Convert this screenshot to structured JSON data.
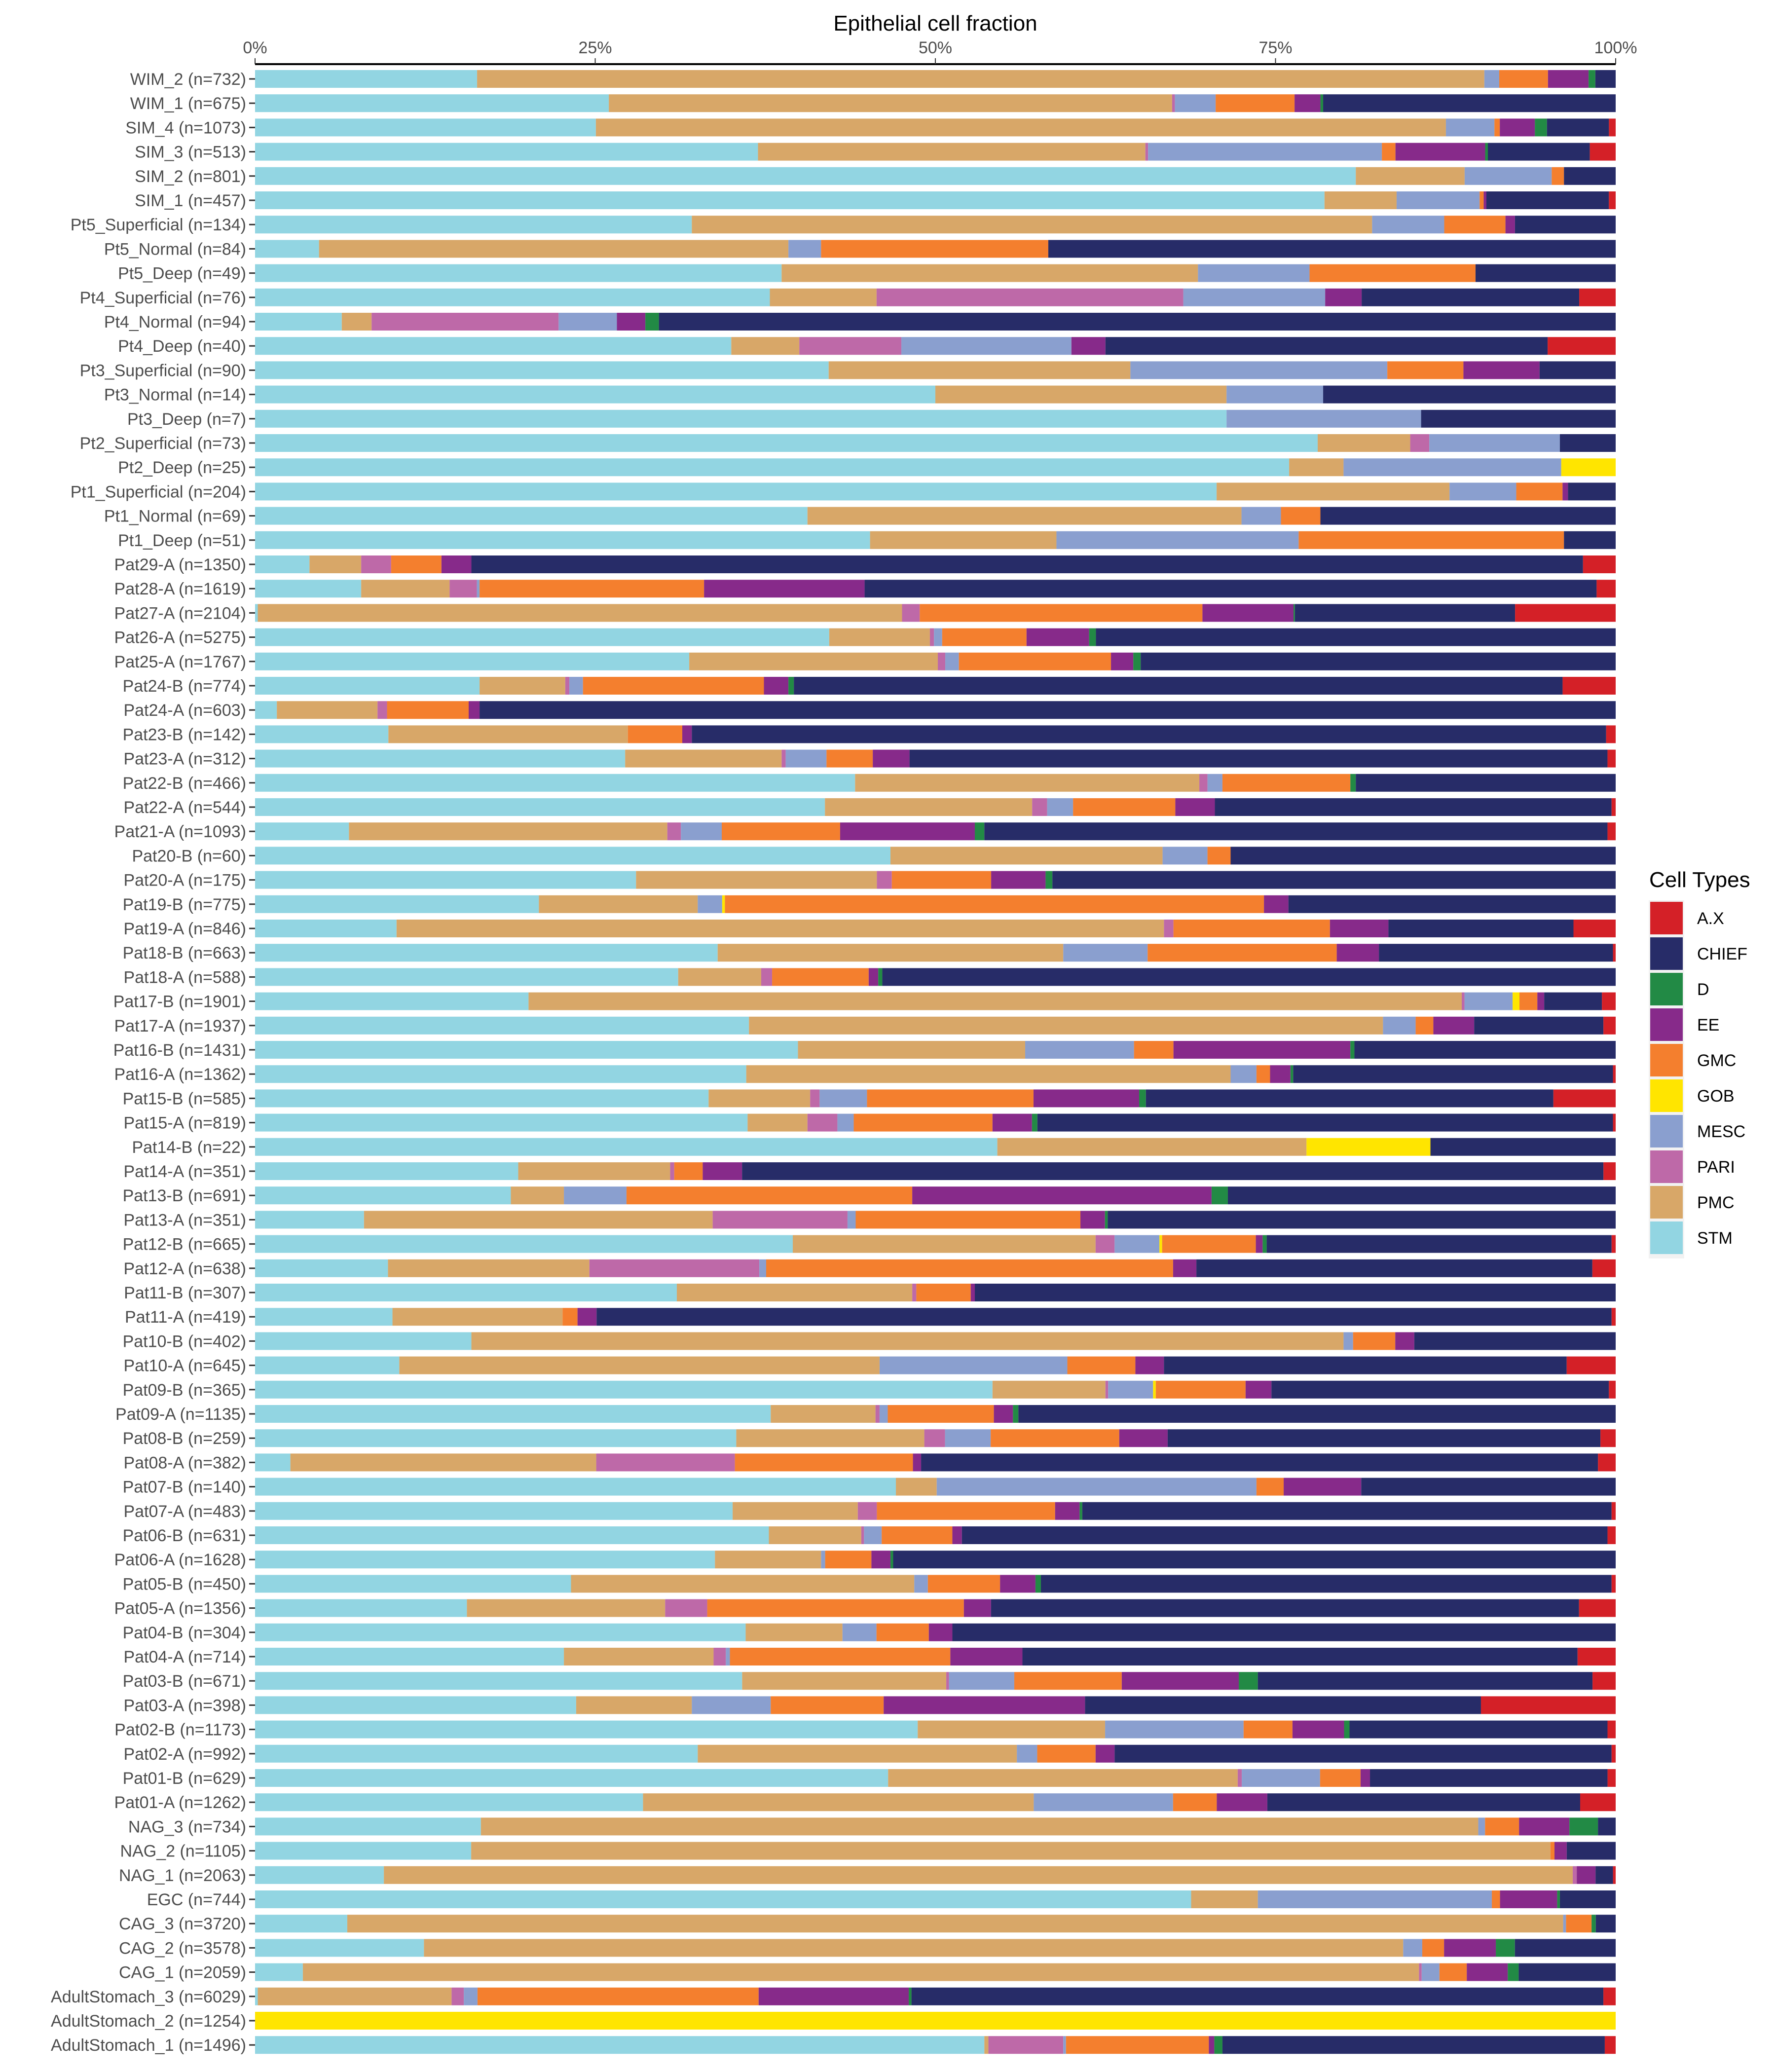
{
  "chart_data": {
    "type": "bar",
    "orientation": "horizontal",
    "stacked": true,
    "title": "Epithelial cell fraction",
    "xlabel": "Epithelial cell fraction",
    "ylabel": "",
    "xlim": [
      0,
      100
    ],
    "x_ticks": [
      "0%",
      "25%",
      "50%",
      "75%",
      "100%"
    ],
    "x_tick_values": [
      0,
      25,
      50,
      75,
      100
    ],
    "grid": false,
    "legend": {
      "title": "Cell Types",
      "placement": "right",
      "items": [
        {
          "name": "A.X",
          "color": "#d42027"
        },
        {
          "name": "CHIEF",
          "color": "#272c68"
        },
        {
          "name": "D",
          "color": "#228a45"
        },
        {
          "name": "EE",
          "color": "#872a8a"
        },
        {
          "name": "GMC",
          "color": "#f47f2e"
        },
        {
          "name": "GOB",
          "color": "#ffe500"
        },
        {
          "name": "MESC",
          "color": "#8a9fcf"
        },
        {
          "name": "PARI",
          "color": "#be69a8"
        },
        {
          "name": "PMC",
          "color": "#d8a768"
        },
        {
          "name": "STM",
          "color": "#92d5e2"
        }
      ]
    },
    "stack_order": [
      "STM",
      "PMC",
      "PARI",
      "MESC",
      "GOB",
      "GMC",
      "EE",
      "D",
      "CHIEF",
      "A.X"
    ],
    "categories": [
      "WIM_2 (n=732)",
      "WIM_1 (n=675)",
      "SIM_4 (n=1073)",
      "SIM_3 (n=513)",
      "SIM_2 (n=801)",
      "SIM_1 (n=457)",
      "Pt5_Superficial (n=134)",
      "Pt5_Normal (n=84)",
      "Pt5_Deep (n=49)",
      "Pt4_Superficial (n=76)",
      "Pt4_Normal (n=94)",
      "Pt4_Deep (n=40)",
      "Pt3_Superficial (n=90)",
      "Pt3_Normal (n=14)",
      "Pt3_Deep (n=7)",
      "Pt2_Superficial (n=73)",
      "Pt2_Deep (n=25)",
      "Pt1_Superficial (n=204)",
      "Pt1_Normal (n=69)",
      "Pt1_Deep (n=51)",
      "Pat29-A (n=1350)",
      "Pat28-A (n=1619)",
      "Pat27-A (n=2104)",
      "Pat26-A (n=5275)",
      "Pat25-A (n=1767)",
      "Pat24-B (n=774)",
      "Pat24-A (n=603)",
      "Pat23-B (n=142)",
      "Pat23-A (n=312)",
      "Pat22-B (n=466)",
      "Pat22-A (n=544)",
      "Pat21-A (n=1093)",
      "Pat20-B (n=60)",
      "Pat20-A (n=175)",
      "Pat19-B (n=775)",
      "Pat19-A (n=846)",
      "Pat18-B (n=663)",
      "Pat18-A (n=588)",
      "Pat17-B (n=1901)",
      "Pat17-A (n=1937)",
      "Pat16-B (n=1431)",
      "Pat16-A (n=1362)",
      "Pat15-B (n=585)",
      "Pat15-A (n=819)",
      "Pat14-B (n=22)",
      "Pat14-A (n=351)",
      "Pat13-B (n=691)",
      "Pat13-A (n=351)",
      "Pat12-B (n=665)",
      "Pat12-A (n=638)",
      "Pat11-B (n=307)",
      "Pat11-A (n=419)",
      "Pat10-B (n=402)",
      "Pat10-A (n=645)",
      "Pat09-B (n=365)",
      "Pat09-A (n=1135)",
      "Pat08-B (n=259)",
      "Pat08-A (n=382)",
      "Pat07-B (n=140)",
      "Pat07-A (n=483)",
      "Pat06-B (n=631)",
      "Pat06-A (n=1628)",
      "Pat05-B (n=450)",
      "Pat05-A (n=1356)",
      "Pat04-B (n=304)",
      "Pat04-A (n=714)",
      "Pat03-B (n=671)",
      "Pat03-A (n=398)",
      "Pat02-B (n=1173)",
      "Pat02-A (n=992)",
      "Pat01-B (n=629)",
      "Pat01-A (n=1262)",
      "NAG_3 (n=734)",
      "NAG_2 (n=1105)",
      "NAG_1 (n=2063)",
      "EGC (n=744)",
      "CAG_3 (n=3720)",
      "CAG_2 (n=3578)",
      "CAG_1 (n=2059)",
      "AdultStomach_3 (n=6029)",
      "AdultStomach_2 (n=1254)",
      "AdultStomach_1 (n=1496)"
    ],
    "series": [
      {
        "name": "STM",
        "values": [
          16.4,
          26.0,
          25.3,
          37.0,
          80.9,
          78.6,
          32.1,
          4.7,
          38.7,
          38.1,
          6.4,
          35.0,
          42.2,
          50.0,
          71.4,
          78.1,
          76.0,
          70.6,
          40.6,
          45.2,
          4.0,
          7.8,
          0.2,
          42.2,
          35.1,
          16.5,
          1.6,
          9.8,
          27.2,
          44.1,
          41.8,
          6.9,
          46.7,
          28.0,
          20.9,
          10.4,
          34.0,
          31.1,
          19.9,
          36.3,
          39.9,
          36.1,
          33.5,
          36.2,
          54.5,
          19.4,
          18.8,
          8.0,
          39.6,
          9.7,
          31.0,
          10.1,
          15.9,
          10.6,
          54.2,
          37.9,
          34.8,
          2.6,
          47.1,
          35.1,
          37.8,
          33.8,
          23.2,
          15.6,
          37.5,
          22.7,
          35.8,
          23.6,
          48.8,
          32.6,
          46.9,
          28.4,
          16.6,
          15.9,
          9.6,
          68.8,
          6.5,
          12.4,
          3.5,
          0.2,
          0,
          53.6
        ]
      },
      {
        "name": "PMC",
        "values": [
          74.4,
          41.4,
          63.1,
          28.5,
          8.0,
          5.3,
          50.0,
          34.5,
          30.6,
          7.9,
          2.2,
          5.0,
          22.2,
          21.4,
          0,
          6.8,
          4.0,
          17.1,
          31.9,
          13.7,
          3.8,
          6.5,
          47.4,
          7.4,
          20.1,
          6.3,
          7.4,
          17.6,
          11.5,
          25.3,
          15.2,
          23.4,
          20.0,
          17.7,
          11.7,
          56.4,
          25.4,
          6.1,
          67.9,
          46.6,
          16.7,
          35.6,
          7.5,
          4.4,
          22.7,
          11.2,
          3.9,
          25.6,
          22.3,
          14.7,
          17.3,
          12.5,
          64.1,
          35.3,
          8.3,
          7.7,
          13.6,
          22.5,
          3.0,
          9.2,
          6.8,
          7.8,
          25.2,
          14.6,
          7.4,
          11.0,
          15.0,
          8.5,
          13.8,
          23.5,
          25.9,
          28.6,
          73.3,
          79.4,
          88.6,
          4.9,
          85.7,
          71.9,
          81.7,
          14.2,
          0,
          0.3
        ]
      },
      {
        "name": "PARI",
        "values": [
          0,
          0.2,
          0,
          0.2,
          0,
          0,
          0,
          0,
          0,
          22.7,
          13.8,
          7.5,
          0,
          0,
          0,
          1.4,
          0,
          0,
          0,
          0,
          2.2,
          2.0,
          1.3,
          0.3,
          0.6,
          0.3,
          0.7,
          0,
          0.3,
          0.6,
          1.1,
          1.0,
          0,
          1.1,
          0,
          0.7,
          0,
          0.8,
          0.2,
          0,
          0,
          0,
          0.7,
          2.2,
          0,
          0.3,
          0,
          9.9,
          1.4,
          12.4,
          0.3,
          0,
          0,
          0,
          0.2,
          0.3,
          1.5,
          10.2,
          0,
          1.4,
          0.2,
          0,
          0,
          3.1,
          0,
          0.9,
          0.2,
          0,
          0,
          0,
          0.3,
          0,
          0,
          0,
          0.3,
          0,
          0,
          0,
          0.2,
          0.9,
          0,
          5.5
        ]
      },
      {
        "name": "MESC",
        "values": [
          1.1,
          3.0,
          3.6,
          17.2,
          6.4,
          6.1,
          5.3,
          2.4,
          8.2,
          10.5,
          4.3,
          12.5,
          18.9,
          7.1,
          14.3,
          9.6,
          16.0,
          4.9,
          2.9,
          17.8,
          0,
          0.2,
          0,
          0.6,
          1.1,
          1.0,
          0,
          0,
          3.0,
          1.1,
          1.9,
          3.0,
          3.3,
          0,
          1.8,
          0,
          6.2,
          0,
          3.5,
          2.4,
          8.0,
          1.9,
          3.5,
          1.2,
          0,
          0,
          4.6,
          0.6,
          3.3,
          0.5,
          0,
          0,
          0.7,
          13.8,
          3.3,
          0.6,
          3.3,
          0,
          23.5,
          0,
          1.3,
          0.3,
          1.0,
          0,
          2.6,
          0.3,
          4.8,
          5.8,
          10.2,
          1.5,
          5.8,
          10.2,
          0.5,
          0,
          0,
          17.2,
          0.2,
          1.4,
          1.3,
          1.0,
          0,
          0.2
        ]
      },
      {
        "name": "GOB",
        "values": [
          0,
          0,
          0,
          0,
          0,
          0,
          0,
          0,
          0,
          0,
          0,
          0,
          0,
          0,
          0,
          0,
          4.0,
          0,
          0,
          0,
          0,
          0,
          0,
          0,
          0,
          0,
          0,
          0,
          0,
          0,
          0,
          0,
          0,
          0,
          0.2,
          0,
          0,
          0,
          0.5,
          0,
          0,
          0,
          0,
          0,
          9.1,
          0,
          0,
          0,
          0.2,
          0,
          0,
          0,
          0,
          0,
          0.2,
          0,
          0,
          0,
          0,
          0,
          0,
          0,
          0,
          0,
          0,
          0,
          0,
          0,
          0,
          0,
          0,
          0,
          0,
          0,
          0,
          0,
          0,
          0,
          0,
          0,
          100,
          0
        ]
      },
      {
        "name": "GMC",
        "values": [
          3.6,
          5.8,
          0.4,
          1.0,
          0.9,
          0.3,
          4.5,
          16.7,
          12.2,
          0,
          0,
          0,
          5.6,
          0,
          0,
          0,
          0,
          3.4,
          2.9,
          19.5,
          3.7,
          16.5,
          20.8,
          6.2,
          12.3,
          13.3,
          6.0,
          4.0,
          3.4,
          9.4,
          7.5,
          8.7,
          1.7,
          7.3,
          39.7,
          11.5,
          13.9,
          7.1,
          1.3,
          1.3,
          2.9,
          1.0,
          12.3,
          10.2,
          0,
          2.1,
          21.0,
          16.5,
          6.9,
          29.7,
          4.0,
          1.1,
          3.1,
          5.0,
          6.6,
          7.8,
          9.3,
          13.1,
          2.0,
          13.1,
          5.2,
          3.4,
          5.3,
          18.9,
          4.0,
          16.2,
          7.9,
          8.3,
          3.6,
          4.3,
          3.0,
          3.2,
          2.5,
          0.3,
          0,
          0.6,
          1.8,
          1.6,
          2.0,
          20.6,
          0,
          10.5
        ]
      },
      {
        "name": "EE",
        "values": [
          3.0,
          1.9,
          2.6,
          6.6,
          0,
          0.2,
          0.7,
          0,
          0,
          2.7,
          2.1,
          2.5,
          5.6,
          0,
          0,
          0,
          0,
          0.4,
          0,
          0,
          2.2,
          11.8,
          6.7,
          4.6,
          1.8,
          1.8,
          0.8,
          0.7,
          2.7,
          0,
          2.9,
          9.9,
          0,
          4.0,
          1.8,
          4.3,
          3.1,
          0.7,
          0.5,
          3.0,
          13.0,
          1.5,
          7.8,
          2.9,
          0,
          2.9,
          22.0,
          1.8,
          0.5,
          1.7,
          0.3,
          1.4,
          1.4,
          2.1,
          1.9,
          1.4,
          3.5,
          0.6,
          5.7,
          1.8,
          0.7,
          1.4,
          2.6,
          2.0,
          1.8,
          5.3,
          8.6,
          14.8,
          3.8,
          1.4,
          0.7,
          3.7,
          3.7,
          0.9,
          1.4,
          4.2,
          0,
          3.8,
          3.0,
          11.0,
          0,
          0.4
        ]
      },
      {
        "name": "D",
        "values": [
          0.5,
          0.2,
          0.9,
          0.2,
          0,
          0,
          0,
          0,
          0,
          0,
          1.0,
          0,
          0,
          0,
          0,
          0,
          0,
          0,
          0,
          0,
          0,
          0,
          0.1,
          0.5,
          0.6,
          0.4,
          0,
          0,
          0,
          0.4,
          0,
          0.7,
          0,
          0.5,
          0,
          0,
          0,
          0.3,
          0,
          0,
          0.3,
          0.2,
          0.5,
          0.4,
          0,
          0,
          1.2,
          0.2,
          0.3,
          0,
          0,
          0,
          0,
          0,
          0,
          0.4,
          0,
          0,
          0,
          0.2,
          0,
          0.2,
          0.4,
          0,
          0,
          0,
          1.4,
          0,
          0.4,
          0,
          0,
          0,
          2.1,
          0,
          0,
          0.2,
          0.3,
          1.4,
          0.8,
          0.2,
          0,
          0.6
        ]
      },
      {
        "name": "CHIEF",
        "values": [
          1.5,
          21.5,
          4.6,
          7.5,
          3.8,
          9.0,
          7.4,
          41.7,
          10.3,
          16.1,
          70.6,
          32.5,
          5.6,
          21.5,
          14.3,
          4.1,
          0,
          3.5,
          21.7,
          3.8,
          81.7,
          53.8,
          16.2,
          38.2,
          38.4,
          56.5,
          83.5,
          67.2,
          51.3,
          19.1,
          29.1,
          45.8,
          28.3,
          41.4,
          24.1,
          13.6,
          17.2,
          53.9,
          4.2,
          9.5,
          19.2,
          23.5,
          30.1,
          42.3,
          13.6,
          63.5,
          28.5,
          37.3,
          25.4,
          28.9,
          47.1,
          74.6,
          14.8,
          29.6,
          24.8,
          43.9,
          31.3,
          49.8,
          18.7,
          38.9,
          47.5,
          53.1,
          41.9,
          43.3,
          50.7,
          40.8,
          24.6,
          29.1,
          19.0,
          36.6,
          17.6,
          22.9,
          1.3,
          3.6,
          1.3,
          4.1,
          1.4,
          7.4,
          7.1,
          50.7,
          0,
          28.1
        ]
      },
      {
        "name": "A.X",
        "values": [
          0,
          0,
          0.5,
          1.9,
          0,
          0.5,
          0,
          0,
          0,
          2.7,
          0,
          5.0,
          0,
          0,
          0,
          0,
          0,
          0,
          0,
          0,
          2.4,
          1.4,
          7.4,
          0,
          0,
          3.9,
          0,
          0.7,
          0.6,
          0,
          0.3,
          0.6,
          0,
          0,
          0,
          3.1,
          0.2,
          0,
          1.0,
          0.9,
          0,
          0.2,
          4.6,
          0.2,
          0,
          0.9,
          0,
          0,
          0.3,
          1.7,
          0,
          0.3,
          0,
          3.6,
          0.5,
          0,
          1.1,
          1.3,
          0,
          0.3,
          0.6,
          0,
          0.3,
          2.7,
          0,
          2.8,
          1.7,
          9.9,
          0.6,
          0.3,
          0.6,
          2.6,
          0,
          0,
          0.2,
          0,
          0,
          0,
          0,
          0.9,
          0,
          0.8
        ]
      }
    ]
  }
}
